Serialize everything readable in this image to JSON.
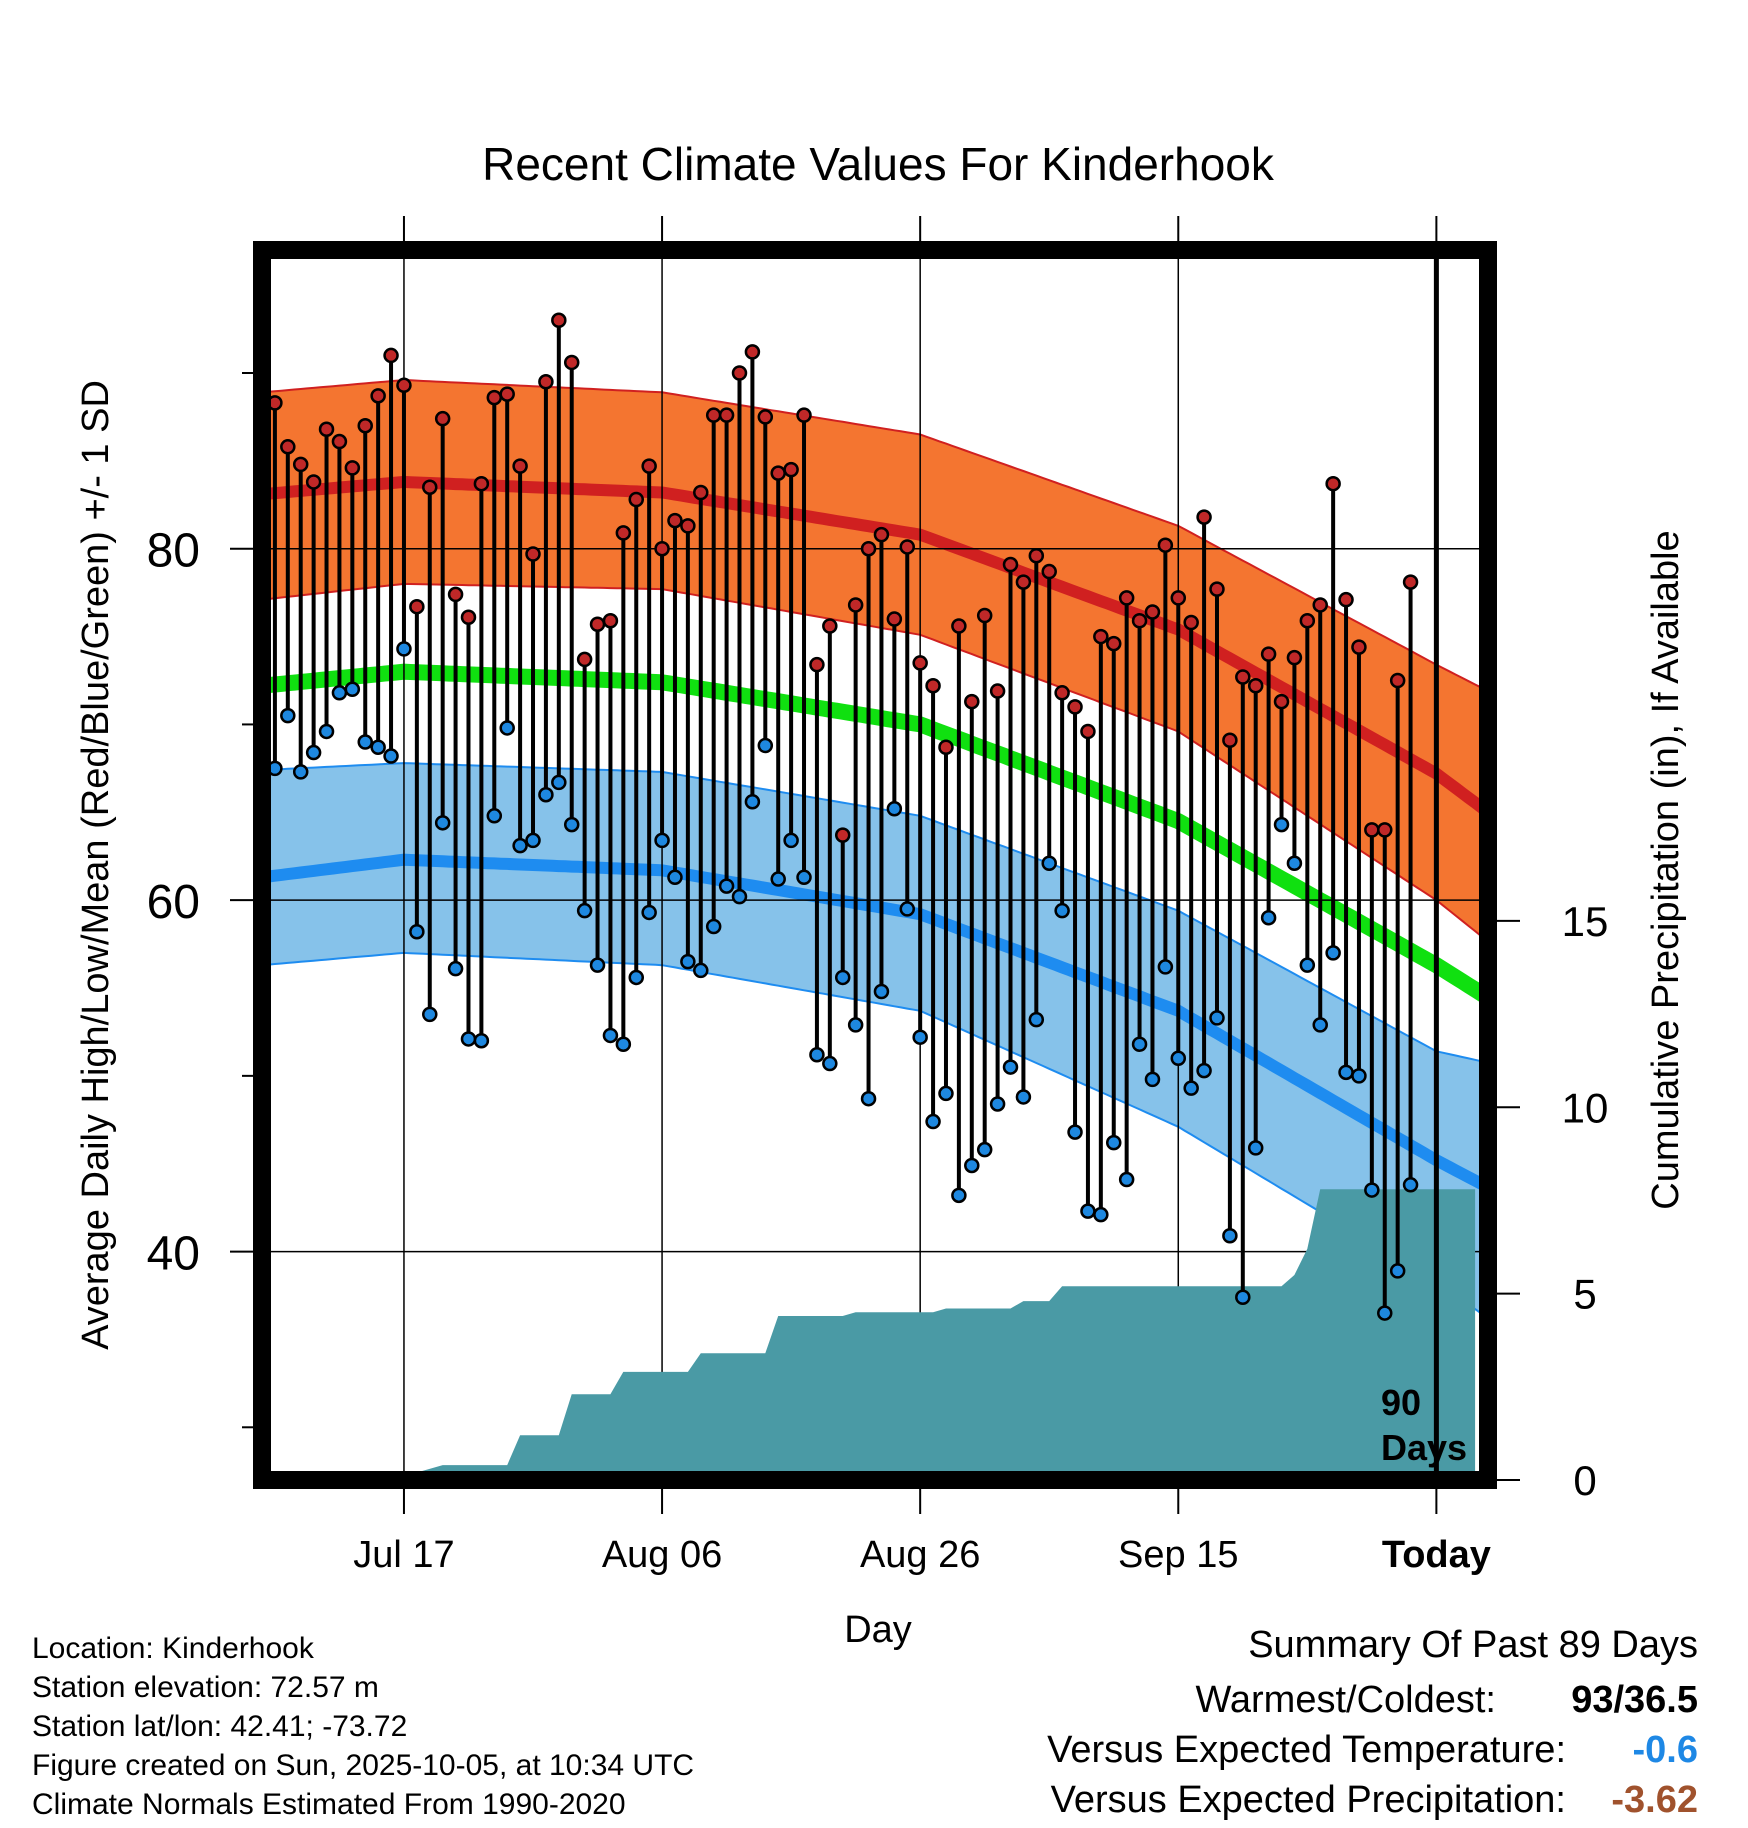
{
  "chart_data": {
    "type": "line",
    "title": "Recent Climate Values For Kinderhook",
    "xlabel": "Day",
    "ylabel": "Average Daily High/Low/Mean (Red/Blue/Green) +/- 1 SD",
    "y2label": "Cumulative Precipitation (in), If Available",
    "x_tick_labels": [
      "Jul 17",
      "Aug 06",
      "Aug 26",
      "Sep 15",
      "Today"
    ],
    "x_tick_days": [
      10,
      30,
      50,
      70,
      90
    ],
    "xlim": [
      -1,
      94
    ],
    "y_ticks": [
      40,
      60,
      80
    ],
    "ylim": [
      27,
      97
    ],
    "y2_ticks": [
      0,
      5,
      10,
      15
    ],
    "y2lim": [
      0,
      33
    ],
    "today_label_line1": "90",
    "today_label_line2": "Days",
    "colors": {
      "high_band": "#f47530",
      "high_mean": "#d02020",
      "low_band": "#86c2ea",
      "low_mean": "#1e8cf0",
      "mean": "#10e010",
      "precip": "#4a9aa5",
      "high_point": "#c02828",
      "low_point": "#1e88e0"
    },
    "normal_high": {
      "days": [
        -1,
        10,
        30,
        50,
        70,
        90,
        98
      ],
      "mean": [
        83.1,
        83.8,
        83.2,
        80.8,
        75.4,
        67.2,
        62.8
      ],
      "upper": [
        88.9,
        89.6,
        88.9,
        86.5,
        81.3,
        73.4,
        70.4
      ],
      "lower": [
        77.1,
        78.0,
        77.7,
        75.1,
        69.6,
        60.0,
        55.3
      ]
    },
    "normal_low": {
      "days": [
        -1,
        10,
        30,
        50,
        70,
        90,
        98
      ],
      "mean": [
        61.3,
        62.3,
        61.7,
        59.2,
        53.7,
        45.2,
        42.1
      ],
      "upper": [
        67.4,
        67.8,
        67.3,
        64.8,
        59.4,
        51.4,
        50.1
      ],
      "lower": [
        56.3,
        57.0,
        56.3,
        53.7,
        47.1,
        38.3,
        34.1
      ]
    },
    "normal_mean": {
      "days": [
        -1,
        10,
        30,
        50,
        70,
        90,
        98
      ],
      "values": [
        72.2,
        73.0,
        72.4,
        70.0,
        64.5,
        56.3,
        52.6
      ]
    },
    "series": [
      {
        "name": "Daily High",
        "values": [
          88.3,
          85.8,
          84.8,
          83.8,
          86.8,
          86.1,
          84.6,
          87.0,
          88.7,
          91.0,
          89.3,
          76.7,
          83.5,
          87.4,
          77.4,
          76.1,
          83.7,
          88.6,
          88.8,
          84.7,
          79.7,
          89.5,
          93.0,
          90.6,
          73.7,
          75.7,
          75.9,
          80.9,
          82.8,
          84.7,
          80.0,
          81.6,
          81.3,
          83.2,
          87.6,
          87.6,
          90.0,
          91.2,
          87.5,
          84.3,
          84.5,
          87.6,
          73.4,
          75.6,
          63.7,
          76.8,
          80.0,
          80.8,
          76.0,
          80.1,
          73.5,
          72.2,
          68.7,
          75.6,
          71.3,
          76.2,
          71.9,
          79.1,
          78.1,
          79.6,
          78.7,
          71.8,
          71.0,
          69.6,
          75.0,
          74.6,
          77.2,
          75.9,
          76.4,
          80.2,
          77.2,
          75.8,
          81.8,
          77.7,
          69.1,
          72.7,
          72.2,
          74.0,
          71.3,
          73.8,
          75.9,
          76.8,
          83.7,
          77.1,
          74.4,
          64.0,
          64.0,
          72.5,
          78.1
        ]
      },
      {
        "name": "Daily Low",
        "values": [
          67.5,
          70.5,
          67.3,
          68.4,
          69.6,
          71.8,
          72.0,
          69.0,
          68.7,
          68.2,
          74.3,
          58.2,
          53.5,
          64.4,
          56.1,
          52.1,
          52.0,
          64.8,
          69.8,
          63.1,
          63.4,
          66.0,
          66.7,
          64.3,
          59.4,
          56.3,
          52.3,
          51.8,
          55.6,
          59.3,
          63.4,
          61.3,
          56.5,
          56.0,
          58.5,
          60.8,
          60.2,
          65.6,
          68.8,
          61.2,
          63.4,
          61.3,
          51.2,
          50.7,
          55.6,
          52.9,
          48.7,
          54.8,
          65.2,
          59.5,
          52.2,
          47.4,
          49.0,
          43.2,
          44.9,
          45.8,
          48.4,
          50.5,
          48.8,
          53.2,
          62.1,
          59.4,
          46.8,
          42.3,
          42.1,
          46.2,
          44.1,
          51.8,
          49.8,
          56.2,
          51.0,
          49.3,
          50.3,
          53.3,
          40.9,
          37.4,
          45.9,
          59.0,
          64.3,
          62.1,
          56.3,
          52.9,
          57.0,
          50.2,
          50.0,
          43.5,
          36.5,
          38.9,
          43.8
        ]
      }
    ],
    "precip": {
      "days": [
        -1,
        9,
        11,
        13,
        18,
        19,
        22,
        23,
        26,
        27,
        32,
        33,
        38,
        39,
        44,
        45,
        51,
        52,
        57,
        58,
        60,
        61,
        62,
        78,
        79,
        80,
        81,
        92,
        93
      ],
      "values": [
        0,
        0,
        0.2,
        0.4,
        0.4,
        1.2,
        1.2,
        2.3,
        2.3,
        2.9,
        2.9,
        3.4,
        3.4,
        4.4,
        4.4,
        4.5,
        4.5,
        4.6,
        4.6,
        4.8,
        4.8,
        5.2,
        5.2,
        5.2,
        5.5,
        6.2,
        7.8,
        7.8,
        7.8
      ]
    }
  },
  "footer_left": {
    "location": "Location: Kinderhook",
    "elevation": "Station elevation: 72.57 m",
    "latlon": "Station lat/lon: 42.41; -73.72",
    "created": "Figure created on Sun, 2025-10-05, at 10:34 UTC",
    "normals": "Climate Normals Estimated From 1990-2020"
  },
  "summary": {
    "heading": "Summary Of Past 89 Days",
    "warm_cold_label": "Warmest/Coldest:",
    "warm_cold_value": "93/36.5",
    "temp_label": "Versus Expected Temperature:",
    "temp_value": "-0.6",
    "temp_color": "#1e88e5",
    "precip_label": "Versus Expected Precipitation:",
    "precip_value": "-3.62",
    "precip_color": "#a0522d"
  }
}
